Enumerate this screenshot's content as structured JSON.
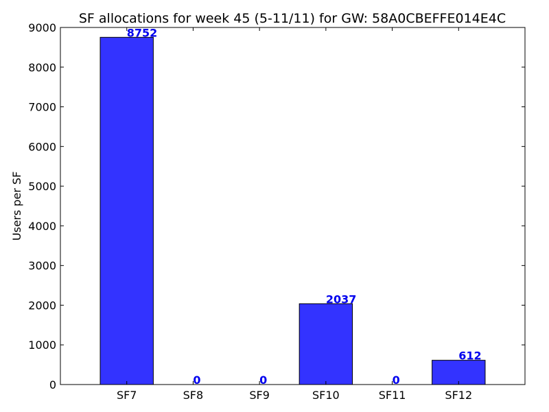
{
  "chart_data": {
    "type": "bar",
    "title": "SF allocations for week 45 (5-11/11) for GW: 58A0CBEFFE014E4C",
    "xlabel": "",
    "ylabel": "Users per SF",
    "categories": [
      "SF7",
      "SF8",
      "SF9",
      "SF10",
      "SF11",
      "SF12"
    ],
    "values": [
      8752,
      0,
      0,
      2037,
      0,
      612
    ],
    "data_labels": [
      "8752",
      "0",
      "0",
      "2037",
      "0",
      "612"
    ],
    "ylim": [
      0,
      9000
    ],
    "yticks": [
      "0",
      "1000",
      "2000",
      "3000",
      "4000",
      "5000",
      "6000",
      "7000",
      "8000",
      "9000"
    ],
    "grid": false,
    "bar_color": "#3333ff",
    "label_color": "#0000ee"
  }
}
